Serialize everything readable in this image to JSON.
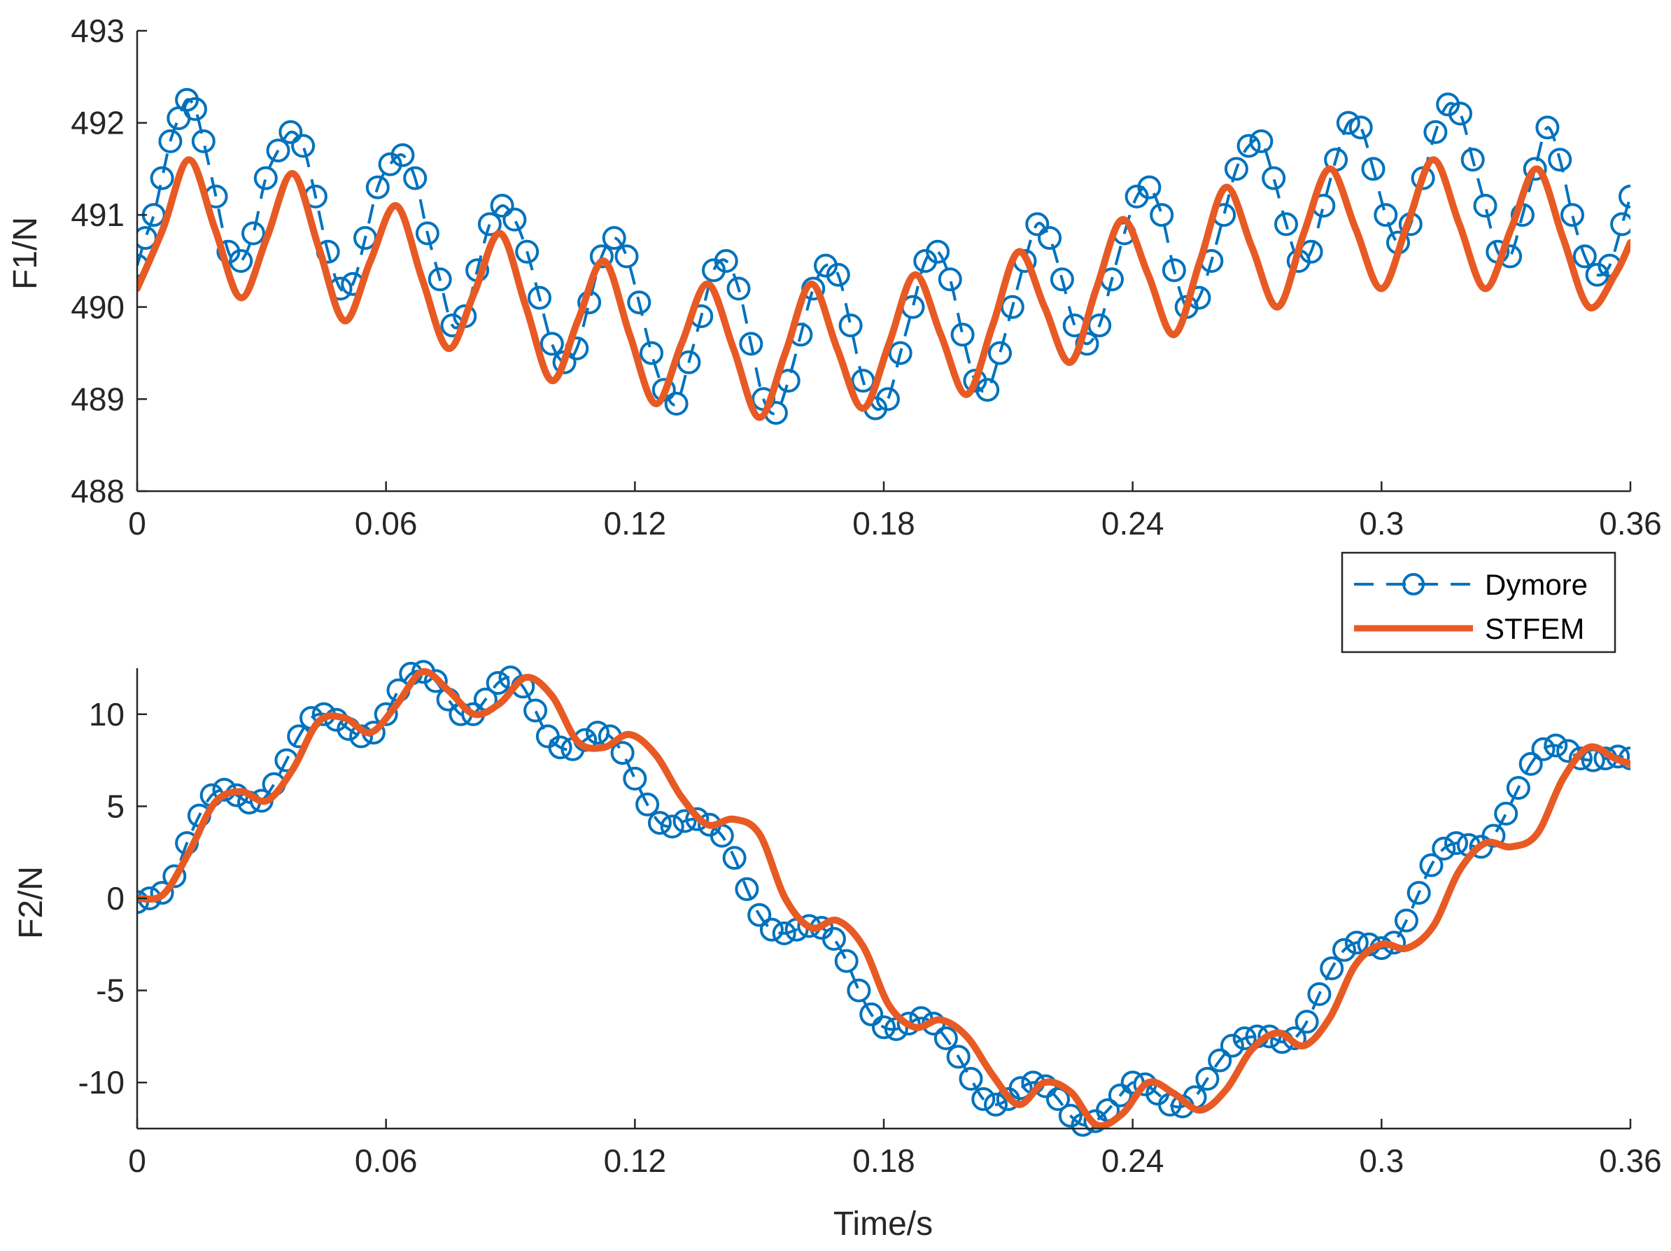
{
  "colors": {
    "dymore": "#0072BD",
    "stfem": "#E85A24",
    "axis": "#262626",
    "background": "#FFFFFF"
  },
  "legend": {
    "entries": [
      {
        "label": "Dymore",
        "style": "dashed-circle"
      },
      {
        "label": "STFEM",
        "style": "solid"
      }
    ]
  },
  "chart_data": [
    {
      "type": "line",
      "title": "",
      "xlabel": "",
      "ylabel": "F1/N",
      "xlim": [
        0,
        0.36
      ],
      "ylim": [
        488,
        493
      ],
      "xticks": [
        0,
        0.06,
        0.12,
        0.18,
        0.24,
        0.3,
        0.36
      ],
      "xtick_labels": [
        "0",
        "0.06",
        "0.12",
        "0.18",
        "0.24",
        "0.3",
        "0.36"
      ],
      "yticks": [
        488,
        489,
        490,
        491,
        492,
        493
      ],
      "ytick_labels": [
        "488",
        "489",
        "490",
        "491",
        "492",
        "493"
      ],
      "series": [
        {
          "name": "STFEM",
          "x": [
            0,
            0.00625,
            0.0125,
            0.01875,
            0.025,
            0.03125,
            0.0375,
            0.04375,
            0.05,
            0.05625,
            0.0625,
            0.06875,
            0.075,
            0.08125,
            0.0875,
            0.09375,
            0.1,
            0.10625,
            0.1125,
            0.11875,
            0.125,
            0.13125,
            0.1375,
            0.14375,
            0.15,
            0.15625,
            0.1625,
            0.16875,
            0.175,
            0.18125,
            0.1875,
            0.19375,
            0.2,
            0.20625,
            0.2125,
            0.21875,
            0.225,
            0.23125,
            0.2375,
            0.24375,
            0.25,
            0.25625,
            0.2625,
            0.26875,
            0.275,
            0.28125,
            0.2875,
            0.29375,
            0.3,
            0.30625,
            0.3125,
            0.31875,
            0.325,
            0.33125,
            0.3375,
            0.34375,
            0.35,
            0.35625,
            0.36
          ],
          "values": [
            490.2,
            490.85,
            491.6,
            490.85,
            490.1,
            490.75,
            491.45,
            490.65,
            489.85,
            490.5,
            491.1,
            490.3,
            489.55,
            490.15,
            490.8,
            490.0,
            489.2,
            489.85,
            490.5,
            489.7,
            488.95,
            489.6,
            490.25,
            489.55,
            488.8,
            489.5,
            490.25,
            489.55,
            488.9,
            489.6,
            490.35,
            489.7,
            489.05,
            489.8,
            490.6,
            490.0,
            489.4,
            490.2,
            490.95,
            490.35,
            489.7,
            490.5,
            491.3,
            490.65,
            490.0,
            490.8,
            491.5,
            490.85,
            490.2,
            490.9,
            491.6,
            490.9,
            490.2,
            490.85,
            491.5,
            490.75,
            490.0,
            490.35,
            490.7
          ]
        },
        {
          "name": "Dymore",
          "x": [
            0,
            0.002,
            0.004,
            0.006,
            0.008,
            0.01,
            0.012,
            0.014,
            0.016,
            0.019,
            0.022,
            0.025,
            0.028,
            0.031,
            0.034,
            0.037,
            0.04,
            0.043,
            0.046,
            0.049,
            0.052,
            0.055,
            0.058,
            0.061,
            0.064,
            0.067,
            0.07,
            0.073,
            0.076,
            0.079,
            0.082,
            0.085,
            0.088,
            0.091,
            0.094,
            0.097,
            0.1,
            0.103,
            0.106,
            0.109,
            0.112,
            0.115,
            0.118,
            0.121,
            0.124,
            0.127,
            0.13,
            0.133,
            0.136,
            0.139,
            0.142,
            0.145,
            0.148,
            0.151,
            0.154,
            0.157,
            0.16,
            0.163,
            0.166,
            0.169,
            0.172,
            0.175,
            0.178,
            0.181,
            0.184,
            0.187,
            0.19,
            0.193,
            0.196,
            0.199,
            0.202,
            0.205,
            0.208,
            0.211,
            0.214,
            0.217,
            0.22,
            0.223,
            0.226,
            0.229,
            0.232,
            0.235,
            0.238,
            0.241,
            0.244,
            0.247,
            0.25,
            0.253,
            0.256,
            0.259,
            0.262,
            0.265,
            0.268,
            0.271,
            0.274,
            0.277,
            0.28,
            0.283,
            0.286,
            0.289,
            0.292,
            0.295,
            0.298,
            0.301,
            0.304,
            0.307,
            0.31,
            0.313,
            0.316,
            0.319,
            0.322,
            0.325,
            0.328,
            0.331,
            0.334,
            0.337,
            0.34,
            0.343,
            0.346,
            0.349,
            0.352,
            0.355,
            0.358,
            0.36
          ],
          "values": [
            490.45,
            490.75,
            491.0,
            491.4,
            491.8,
            492.05,
            492.25,
            492.15,
            491.8,
            491.2,
            490.6,
            490.5,
            490.8,
            491.4,
            491.7,
            491.9,
            491.75,
            491.2,
            490.6,
            490.2,
            490.25,
            490.75,
            491.3,
            491.55,
            491.65,
            491.4,
            490.8,
            490.3,
            489.8,
            489.9,
            490.4,
            490.9,
            491.1,
            490.95,
            490.6,
            490.1,
            489.6,
            489.4,
            489.55,
            490.05,
            490.55,
            490.75,
            490.55,
            490.05,
            489.5,
            489.1,
            488.95,
            489.4,
            489.9,
            490.4,
            490.5,
            490.2,
            489.6,
            489.0,
            488.85,
            489.2,
            489.7,
            490.2,
            490.45,
            490.35,
            489.8,
            489.2,
            488.9,
            489.0,
            489.5,
            490.0,
            490.5,
            490.6,
            490.3,
            489.7,
            489.2,
            489.1,
            489.5,
            490.0,
            490.5,
            490.9,
            490.75,
            490.3,
            489.8,
            489.6,
            489.8,
            490.3,
            490.8,
            491.2,
            491.3,
            491.0,
            490.4,
            490.0,
            490.1,
            490.5,
            491.0,
            491.5,
            491.75,
            491.8,
            491.4,
            490.9,
            490.5,
            490.6,
            491.1,
            491.6,
            492.0,
            491.95,
            491.5,
            491.0,
            490.7,
            490.9,
            491.4,
            491.9,
            492.2,
            492.1,
            491.6,
            491.1,
            490.6,
            490.55,
            491.0,
            491.5,
            491.95,
            491.6,
            491.0,
            490.55,
            490.35,
            490.45,
            490.9,
            491.2
          ]
        }
      ]
    },
    {
      "type": "line",
      "title": "",
      "xlabel": "Time/s",
      "ylabel": "F2/N",
      "xlim": [
        0,
        0.36
      ],
      "ylim": [
        -12.5,
        12.5
      ],
      "xticks": [
        0,
        0.06,
        0.12,
        0.18,
        0.24,
        0.3,
        0.36
      ],
      "xtick_labels": [
        "0",
        "0.06",
        "0.12",
        "0.18",
        "0.24",
        "0.3",
        "0.36"
      ],
      "yticks": [
        -10,
        -5,
        0,
        5,
        10
      ],
      "ytick_labels": [
        "-10",
        "-5",
        "0",
        "5",
        "10"
      ],
      "series": [
        {
          "name": "STFEM",
          "x": [
            0,
            0.00625,
            0.0125,
            0.01875,
            0.025,
            0.03125,
            0.0375,
            0.04375,
            0.05,
            0.05625,
            0.0625,
            0.06875,
            0.075,
            0.08125,
            0.0875,
            0.09375,
            0.1,
            0.10625,
            0.1125,
            0.11875,
            0.125,
            0.13125,
            0.1375,
            0.14375,
            0.15,
            0.15625,
            0.1625,
            0.16875,
            0.175,
            0.18125,
            0.1875,
            0.19375,
            0.2,
            0.20625,
            0.2125,
            0.21875,
            0.225,
            0.23125,
            0.2375,
            0.24375,
            0.25,
            0.25625,
            0.2625,
            0.26875,
            0.275,
            0.28125,
            0.2875,
            0.29375,
            0.3,
            0.30625,
            0.3125,
            0.31875,
            0.325,
            0.33125,
            0.3375,
            0.34375,
            0.35,
            0.35625,
            0.36
          ],
          "values": [
            0,
            0.2,
            2.5,
            5.2,
            5.8,
            5.3,
            7.0,
            9.6,
            9.8,
            9.0,
            10.5,
            12.3,
            11.3,
            10.0,
            10.6,
            12.0,
            11.0,
            8.5,
            8.2,
            8.9,
            7.8,
            5.5,
            4.0,
            4.3,
            3.5,
            0.0,
            -1.6,
            -1.2,
            -2.6,
            -5.8,
            -7.0,
            -6.6,
            -7.5,
            -9.6,
            -11.2,
            -10.0,
            -10.5,
            -12.3,
            -11.7,
            -10.0,
            -10.6,
            -11.5,
            -10.4,
            -8.2,
            -7.3,
            -8.0,
            -6.5,
            -3.6,
            -2.5,
            -2.7,
            -1.5,
            1.5,
            3.0,
            2.8,
            3.5,
            6.5,
            8.2,
            7.6,
            7.3
          ]
        },
        {
          "name": "Dymore",
          "x": [
            0,
            0.003,
            0.006,
            0.009,
            0.012,
            0.015,
            0.018,
            0.021,
            0.024,
            0.027,
            0.03,
            0.033,
            0.036,
            0.039,
            0.042,
            0.045,
            0.048,
            0.051,
            0.054,
            0.057,
            0.06,
            0.063,
            0.066,
            0.069,
            0.072,
            0.075,
            0.078,
            0.081,
            0.084,
            0.087,
            0.09,
            0.093,
            0.096,
            0.099,
            0.102,
            0.105,
            0.108,
            0.111,
            0.114,
            0.117,
            0.12,
            0.123,
            0.126,
            0.129,
            0.132,
            0.135,
            0.138,
            0.141,
            0.144,
            0.147,
            0.15,
            0.153,
            0.156,
            0.159,
            0.162,
            0.165,
            0.168,
            0.171,
            0.174,
            0.177,
            0.18,
            0.183,
            0.186,
            0.189,
            0.192,
            0.195,
            0.198,
            0.201,
            0.204,
            0.207,
            0.21,
            0.213,
            0.216,
            0.219,
            0.222,
            0.225,
            0.228,
            0.231,
            0.234,
            0.237,
            0.24,
            0.243,
            0.246,
            0.249,
            0.252,
            0.255,
            0.258,
            0.261,
            0.264,
            0.267,
            0.27,
            0.273,
            0.276,
            0.279,
            0.282,
            0.285,
            0.288,
            0.291,
            0.294,
            0.297,
            0.3,
            0.303,
            0.306,
            0.309,
            0.312,
            0.315,
            0.318,
            0.321,
            0.324,
            0.327,
            0.33,
            0.333,
            0.336,
            0.339,
            0.342,
            0.345,
            0.348,
            0.351,
            0.354,
            0.357,
            0.36
          ],
          "values": [
            -0.2,
            0.0,
            0.3,
            1.2,
            3.0,
            4.5,
            5.6,
            5.9,
            5.6,
            5.2,
            5.3,
            6.2,
            7.5,
            8.8,
            9.8,
            10.0,
            9.7,
            9.2,
            8.8,
            9.0,
            10.0,
            11.3,
            12.2,
            12.3,
            11.8,
            10.8,
            10.0,
            10.0,
            10.8,
            11.7,
            12.0,
            11.5,
            10.2,
            8.8,
            8.2,
            8.1,
            8.6,
            9.0,
            8.8,
            7.9,
            6.5,
            5.1,
            4.1,
            3.9,
            4.2,
            4.3,
            4.0,
            3.4,
            2.2,
            0.5,
            -0.9,
            -1.7,
            -1.9,
            -1.7,
            -1.5,
            -1.6,
            -2.2,
            -3.4,
            -5.0,
            -6.3,
            -7.0,
            -7.1,
            -6.8,
            -6.5,
            -6.8,
            -7.6,
            -8.6,
            -9.8,
            -10.9,
            -11.2,
            -10.9,
            -10.3,
            -10.0,
            -10.2,
            -10.9,
            -11.8,
            -12.3,
            -12.1,
            -11.5,
            -10.7,
            -10.0,
            -10.1,
            -10.6,
            -11.2,
            -11.3,
            -10.8,
            -9.8,
            -8.8,
            -8.0,
            -7.6,
            -7.5,
            -7.5,
            -7.8,
            -7.6,
            -6.7,
            -5.2,
            -3.8,
            -2.8,
            -2.4,
            -2.5,
            -2.7,
            -2.4,
            -1.2,
            0.3,
            1.8,
            2.7,
            3.0,
            2.9,
            2.8,
            3.4,
            4.6,
            6.0,
            7.3,
            8.1,
            8.3,
            8.0,
            7.6,
            7.5,
            7.6,
            7.7,
            7.6
          ]
        }
      ]
    }
  ]
}
